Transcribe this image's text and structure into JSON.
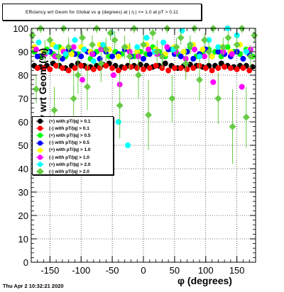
{
  "title": "Efficiency wrt Geom for Global vs φ (degrees) at | η | <= 1.0 at pT > 0.11",
  "timestamp": "Thu Apr  2 10:32:21 2020",
  "chart_data": {
    "type": "scatter",
    "xlabel": "φ (degrees)",
    "ylabel": "Efficiency wrt Geom (%)",
    "xlim": [
      -180,
      180
    ],
    "ylim": [
      0,
      100
    ],
    "x_ticks": [
      -150,
      -100,
      -50,
      0,
      50,
      100,
      150
    ],
    "y_ticks": [
      0,
      10,
      20,
      30,
      40,
      50,
      60,
      70,
      80,
      90,
      100
    ],
    "grid": true,
    "legend_position": "middle-left",
    "series": [
      {
        "name": "(+) with pT/|q| > 0.1",
        "color": "#000000",
        "marker": "circle",
        "x": [
          -175,
          -165,
          -155,
          -145,
          -135,
          -125,
          -115,
          -105,
          -95,
          -85,
          -75,
          -65,
          -55,
          -45,
          -35,
          -25,
          -15,
          -5,
          5,
          15,
          25,
          35,
          45,
          55,
          65,
          75,
          85,
          95,
          105,
          115,
          125,
          135,
          145,
          155,
          165,
          175
        ],
        "y": [
          84,
          83.5,
          84,
          85,
          84,
          83,
          84,
          85,
          84,
          83.5,
          84,
          84.5,
          85,
          84,
          83.5,
          84,
          84,
          84.5,
          84,
          83.5,
          84,
          85,
          84,
          83,
          84,
          84.5,
          84,
          83.5,
          84,
          84,
          85,
          84,
          83.5,
          84,
          84,
          83.5
        ]
      },
      {
        "name": "(-) with pT/|q| > 0.1",
        "color": "#ff0000",
        "marker": "circle",
        "x": [
          -170,
          -160,
          -150,
          -140,
          -130,
          -120,
          -110,
          -100,
          -90,
          -80,
          -70,
          -60,
          -50,
          -40,
          -30,
          -20,
          -10,
          0,
          10,
          20,
          30,
          40,
          50,
          60,
          70,
          80,
          90,
          100,
          110,
          120,
          130,
          140,
          150,
          160,
          170
        ],
        "y": [
          83,
          83,
          82.5,
          84,
          83,
          82,
          83,
          84,
          83,
          82.5,
          83,
          84,
          83,
          82,
          83,
          83.5,
          83,
          82.5,
          83,
          84,
          83,
          82,
          83,
          83,
          82.5,
          83,
          84,
          83,
          82,
          83,
          83.5,
          83,
          82.5,
          83,
          82
        ]
      },
      {
        "name": "(+) with pT/|q| > 0.5",
        "color": "#00ff00",
        "marker": "circle",
        "x": [
          -175,
          -165,
          -155,
          -145,
          -135,
          -125,
          -115,
          -105,
          -95,
          -85,
          -75,
          -65,
          -55,
          -45,
          -35,
          -25,
          -15,
          -5,
          5,
          15,
          25,
          35,
          45,
          55,
          65,
          75,
          85,
          95,
          105,
          115,
          125,
          135,
          145,
          155,
          165,
          175
        ],
        "y": [
          90,
          88,
          91,
          89,
          92,
          88,
          90,
          89,
          91,
          87,
          90,
          92,
          88,
          90,
          89,
          91,
          88,
          90,
          89,
          92,
          90,
          88,
          91,
          89,
          90,
          92,
          88,
          89,
          91,
          90,
          88,
          92,
          90,
          89,
          91,
          88
        ]
      },
      {
        "name": "(-) with pT/|q| > 0.5",
        "color": "#0000ff",
        "marker": "circle",
        "x": [
          -170,
          -160,
          -150,
          -140,
          -130,
          -120,
          -110,
          -100,
          -90,
          -80,
          -70,
          -60,
          -50,
          -40,
          -30,
          -20,
          -10,
          0,
          10,
          20,
          30,
          40,
          50,
          60,
          70,
          80,
          90,
          100,
          110,
          120,
          130,
          140,
          150,
          160,
          170
        ],
        "y": [
          88,
          89,
          90,
          88,
          87,
          91,
          89,
          88,
          90,
          89,
          87,
          90,
          88,
          89,
          91,
          88,
          90,
          87,
          89,
          90,
          88,
          91,
          89,
          88,
          90,
          87,
          89,
          91,
          88,
          90,
          89,
          88,
          90,
          87,
          89
        ]
      },
      {
        "name": "(+) with pT/|q| > 1.0",
        "color": "#ffff00",
        "marker": "circle",
        "x": [
          -175,
          -160,
          -145,
          -130,
          -115,
          -100,
          -85,
          -70,
          -55,
          -40,
          -25,
          -10,
          5,
          20,
          35,
          50,
          65,
          80,
          95,
          110,
          125,
          140,
          155,
          170
        ],
        "y": [
          92,
          90,
          93,
          91,
          89,
          92,
          90,
          93,
          91,
          88,
          92,
          90,
          93,
          91,
          89,
          92,
          90,
          93,
          91,
          88,
          92,
          90,
          93,
          91
        ]
      },
      {
        "name": "(-) with pT/|q| > 1.0",
        "color": "#ff00ff",
        "marker": "circle",
        "x": [
          -172,
          -158,
          -142,
          -128,
          -112,
          -98,
          -82,
          -68,
          -48,
          -38,
          -22,
          -8,
          8,
          22,
          38,
          52,
          68,
          82,
          98,
          112,
          128,
          142,
          158,
          172
        ],
        "y": [
          91,
          89,
          88,
          90,
          92,
          78,
          89,
          91,
          80,
          76,
          90,
          88,
          91,
          89,
          92,
          90,
          87,
          91,
          88,
          77,
          90,
          89,
          75,
          91
        ]
      },
      {
        "name": "(+) with pT/|q| > 2.0",
        "color": "#00ffff",
        "marker": "circle",
        "x": [
          -168,
          -155,
          -140,
          -125,
          -110,
          -95,
          -80,
          -65,
          -52,
          -40,
          -25,
          -10,
          5,
          18,
          32,
          48,
          62,
          75,
          90,
          105,
          120,
          135,
          150,
          165
        ],
        "y": [
          94,
          90,
          92,
          89,
          95,
          91,
          86,
          93,
          98,
          60,
          50,
          92,
          96,
          90,
          94,
          91,
          99,
          93,
          88,
          95,
          92,
          100,
          97,
          90
        ]
      },
      {
        "name": "(-) with pT/|q| > 2.0",
        "color": "#66cc44",
        "marker": "diamond",
        "x": [
          -178,
          -172,
          -165,
          -158,
          -150,
          -143,
          -136,
          -128,
          -120,
          -112,
          -105,
          -98,
          -90,
          -82,
          -75,
          -68,
          -60,
          -53,
          -46,
          -38,
          -30,
          -22,
          -15,
          -8,
          0,
          8,
          15,
          22,
          30,
          38,
          46,
          53,
          60,
          68,
          75,
          82,
          90,
          98,
          105,
          112,
          120,
          128,
          136,
          143,
          150,
          158,
          165,
          172,
          178
        ],
        "y": [
          97,
          74,
          100,
          90,
          95,
          65,
          88,
          100,
          92,
          70,
          80,
          96,
          75,
          93,
          100,
          85,
          91,
          98,
          95,
          67,
          92,
          88,
          100,
          80,
          93,
          63,
          98,
          90,
          88,
          100,
          70,
          92,
          96,
          85,
          93,
          100,
          78,
          95,
          90,
          100,
          70,
          92,
          96,
          58,
          93,
          100,
          62,
          88,
          97
        ],
        "err": [
          3,
          6,
          2,
          5,
          3,
          10,
          5,
          2,
          4,
          12,
          8,
          3,
          10,
          4,
          2,
          8,
          5,
          3,
          4,
          14,
          5,
          6,
          2,
          10,
          4,
          15,
          3,
          5,
          5,
          2,
          10,
          4,
          3,
          7,
          4,
          2,
          9,
          3,
          5,
          2,
          11,
          4,
          3,
          16,
          4,
          2,
          13,
          5,
          3
        ]
      }
    ]
  }
}
